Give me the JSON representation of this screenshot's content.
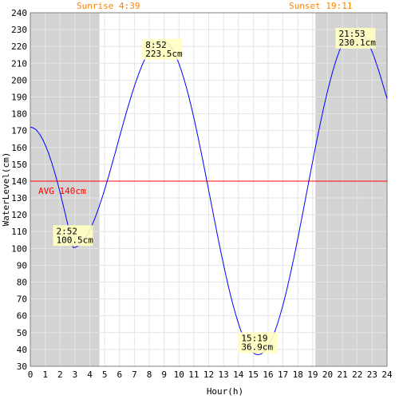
{
  "chart_data": {
    "type": "line",
    "xlabel": "Hour(h)",
    "ylabel": "WaterLevel(cm)",
    "xlim": [
      0,
      24
    ],
    "ylim": [
      30,
      240
    ],
    "x_ticks": [
      "0",
      "1",
      "2",
      "3",
      "4",
      "5",
      "6",
      "7",
      "8",
      "9",
      "10",
      "11",
      "12",
      "13",
      "14",
      "15",
      "16",
      "17",
      "18",
      "19",
      "20",
      "21",
      "22",
      "23",
      "24"
    ],
    "y_ticks": [
      "30",
      "40",
      "50",
      "60",
      "70",
      "80",
      "90",
      "100",
      "110",
      "120",
      "130",
      "140",
      "150",
      "160",
      "170",
      "180",
      "190",
      "200",
      "210",
      "220",
      "230",
      "240"
    ],
    "grid": true,
    "sunrise": {
      "label": "Sunrise 4:39",
      "hour": 4.65
    },
    "sunset": {
      "label": "Sunset 19:11",
      "hour": 19.18
    },
    "night_shading_color": "#d3d3d3",
    "average": {
      "label": "AVG 140cm",
      "value": 140,
      "color": "#ff0000"
    },
    "series": [
      {
        "color": "#0000ff",
        "extrema": [
          {
            "x": 2.87,
            "y": 100.5,
            "time": "2:52",
            "level": "100.5cm"
          },
          {
            "x": 8.87,
            "y": 223.5,
            "time": "8:52",
            "level": "223.5cm"
          },
          {
            "x": 15.32,
            "y": 36.9,
            "time": "15:19",
            "level": "36.9cm"
          },
          {
            "x": 21.88,
            "y": 230.1,
            "time": "21:53",
            "level": "230.1cm"
          }
        ],
        "start": {
          "x": 0,
          "y": 172
        },
        "end": {
          "x": 24,
          "y": 189
        }
      }
    ]
  }
}
